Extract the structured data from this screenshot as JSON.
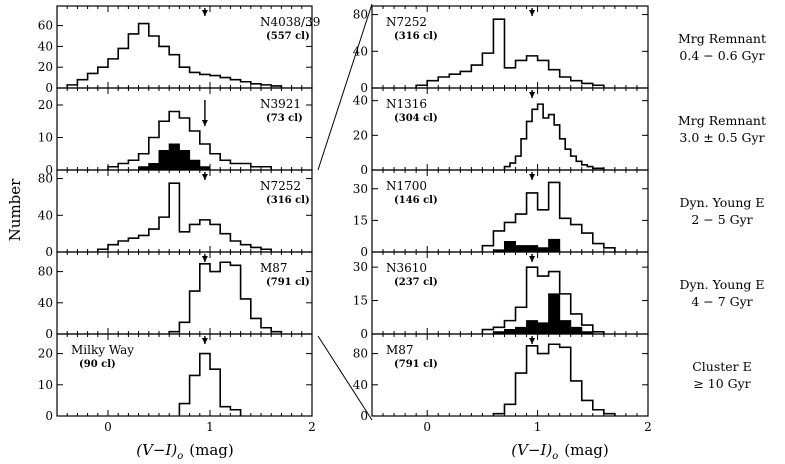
{
  "figure": {
    "ylabel": "Number",
    "xlabel_left": "(V−I)",
    "xlabel_right": "(V−I)",
    "xlabel_subscript": "o",
    "xlabel_unit": "(mag)"
  },
  "chart_data": [
    {
      "type": "histogram",
      "column": "left",
      "label": "N4038/39",
      "count": "(557 cl)",
      "xlim": [
        -0.5,
        2
      ],
      "ylim": [
        0,
        75
      ],
      "yticks": [
        0,
        20,
        40,
        60
      ],
      "arrow": 0.95,
      "bins": [
        -0.4,
        -0.3,
        -0.2,
        -0.1,
        0,
        0.1,
        0.2,
        0.3,
        0.4,
        0.5,
        0.6,
        0.7,
        0.8,
        0.9,
        1.0,
        1.1,
        1.2,
        1.3,
        1.4,
        1.5,
        1.6,
        1.7
      ],
      "series": [
        {
          "values": [
            3,
            8,
            14,
            20,
            28,
            38,
            52,
            62,
            50,
            40,
            32,
            20,
            15,
            13,
            12,
            10,
            8,
            6,
            4,
            3,
            2
          ]
        }
      ]
    },
    {
      "type": "histogram",
      "column": "left",
      "label": "N3921",
      "count": "(73 cl)",
      "xlim": [
        -0.5,
        2
      ],
      "ylim": [
        0,
        24
      ],
      "yticks": [
        0,
        10,
        20
      ],
      "arrow": 0.95,
      "bins": [
        0,
        0.1,
        0.2,
        0.3,
        0.4,
        0.5,
        0.6,
        0.7,
        0.8,
        0.9,
        1.0,
        1.1,
        1.2,
        1.3,
        1.4,
        1.5,
        1.6
      ],
      "series": [
        {
          "values": [
            1,
            2,
            3,
            5,
            10,
            15,
            18,
            16,
            12,
            8,
            5,
            3,
            2,
            2,
            1,
            1
          ]
        },
        {
          "values": [
            0,
            0,
            0,
            1,
            2,
            6,
            8,
            6,
            3,
            1,
            0,
            0,
            0,
            0,
            0,
            0
          ],
          "filled": true
        }
      ]
    },
    {
      "type": "histogram",
      "column": "left",
      "label": "N7252",
      "count": "(316 cl)",
      "xlim": [
        -0.5,
        2
      ],
      "ylim": [
        0,
        85
      ],
      "yticks": [
        0,
        40,
        80
      ],
      "arrow": 0.95,
      "bins": [
        -0.1,
        0,
        0.1,
        0.2,
        0.3,
        0.4,
        0.5,
        0.6,
        0.7,
        0.8,
        0.9,
        1.0,
        1.1,
        1.2,
        1.3,
        1.4,
        1.5,
        1.6
      ],
      "series": [
        {
          "values": [
            3,
            8,
            12,
            15,
            18,
            25,
            38,
            75,
            22,
            30,
            35,
            30,
            20,
            12,
            8,
            5,
            3
          ]
        }
      ]
    },
    {
      "type": "histogram",
      "column": "left",
      "label": "M87",
      "count": "(791 cl)",
      "xlim": [
        -0.5,
        2
      ],
      "ylim": [
        0,
        100
      ],
      "yticks": [
        0,
        40,
        80
      ],
      "arrow": 0.95,
      "bins": [
        0.6,
        0.7,
        0.8,
        0.9,
        1.0,
        1.1,
        1.2,
        1.3,
        1.4,
        1.5,
        1.6,
        1.7
      ],
      "series": [
        {
          "values": [
            3,
            15,
            55,
            90,
            80,
            92,
            88,
            45,
            20,
            8,
            3
          ]
        }
      ]
    },
    {
      "type": "histogram",
      "column": "left",
      "label": "Milky Way",
      "count": "(90 cl)",
      "xlim": [
        -0.5,
        2
      ],
      "ylim": [
        0,
        25
      ],
      "yticks": [
        0,
        10,
        20
      ],
      "arrow": 0.95,
      "bins": [
        0.7,
        0.8,
        0.9,
        1.0,
        1.1,
        1.2,
        1.3
      ],
      "series": [
        {
          "values": [
            4,
            13,
            20,
            15,
            3,
            2
          ]
        }
      ]
    },
    {
      "type": "histogram",
      "column": "right",
      "label": "N7252",
      "count": "(316 cl)",
      "xlim": [
        -0.5,
        2
      ],
      "ylim": [
        0,
        85
      ],
      "yticks": [
        0,
        40,
        80
      ],
      "arrow": 0.95,
      "bins": [
        -0.1,
        0,
        0.1,
        0.2,
        0.3,
        0.4,
        0.5,
        0.6,
        0.7,
        0.8,
        0.9,
        1.0,
        1.1,
        1.2,
        1.3,
        1.4,
        1.5,
        1.6
      ],
      "series": [
        {
          "values": [
            3,
            8,
            12,
            15,
            18,
            25,
            38,
            75,
            22,
            30,
            35,
            30,
            20,
            12,
            8,
            5,
            3
          ]
        }
      ]
    },
    {
      "type": "histogram",
      "column": "right",
      "label": "N1316",
      "count": "(304 cl)",
      "xlim": [
        -0.5,
        2
      ],
      "ylim": [
        0,
        45
      ],
      "yticks": [
        0,
        20,
        40
      ],
      "arrow": 0.95,
      "bins": [
        0.7,
        0.75,
        0.8,
        0.85,
        0.9,
        0.95,
        1.0,
        1.05,
        1.1,
        1.15,
        1.2,
        1.25,
        1.3,
        1.35,
        1.4,
        1.45,
        1.5,
        1.55,
        1.6
      ],
      "series": [
        {
          "values": [
            2,
            4,
            8,
            18,
            28,
            35,
            38,
            30,
            32,
            26,
            18,
            12,
            8,
            5,
            3,
            2,
            1,
            1
          ]
        }
      ]
    },
    {
      "type": "histogram",
      "column": "right",
      "label": "N1700",
      "count": "(146 cl)",
      "xlim": [
        -0.5,
        2
      ],
      "ylim": [
        0,
        37
      ],
      "yticks": [
        0,
        15,
        30
      ],
      "arrow": 0.95,
      "bins": [
        0.5,
        0.6,
        0.7,
        0.8,
        0.9,
        1.0,
        1.1,
        1.2,
        1.3,
        1.4,
        1.5,
        1.6,
        1.7
      ],
      "series": [
        {
          "values": [
            3,
            10,
            14,
            18,
            28,
            20,
            33,
            16,
            13,
            9,
            4,
            2
          ]
        },
        {
          "values": [
            0,
            1,
            5,
            3,
            3,
            2,
            6,
            0,
            0,
            0,
            0,
            0
          ],
          "filled": true
        }
      ]
    },
    {
      "type": "histogram",
      "column": "right",
      "label": "N3610",
      "count": "(237 cl)",
      "xlim": [
        -0.5,
        2
      ],
      "ylim": [
        0,
        35
      ],
      "yticks": [
        0,
        15,
        30
      ],
      "arrow": 0.95,
      "bins": [
        0.5,
        0.6,
        0.7,
        0.8,
        0.9,
        1.0,
        1.1,
        1.2,
        1.3,
        1.4,
        1.5,
        1.6
      ],
      "series": [
        {
          "values": [
            2,
            3,
            6,
            12,
            30,
            26,
            28,
            18,
            9,
            4,
            1
          ]
        },
        {
          "values": [
            0,
            1,
            2,
            3,
            6,
            5,
            18,
            6,
            3,
            1,
            0
          ],
          "filled": true
        }
      ]
    },
    {
      "type": "histogram",
      "column": "right",
      "label": "M87",
      "count": "(791 cl)",
      "xlim": [
        -0.5,
        2
      ],
      "ylim": [
        0,
        100
      ],
      "yticks": [
        0,
        40,
        80
      ],
      "arrow": 0.95,
      "bins": [
        0.6,
        0.7,
        0.8,
        0.9,
        1.0,
        1.1,
        1.2,
        1.3,
        1.4,
        1.5,
        1.6,
        1.7
      ],
      "series": [
        {
          "values": [
            3,
            15,
            55,
            90,
            80,
            92,
            88,
            45,
            20,
            8,
            3
          ]
        }
      ]
    }
  ],
  "side_labels": [
    {
      "line1": "Mrg Remnant",
      "line2": "0.4 − 0.6 Gyr"
    },
    {
      "line1": "Mrg Remnant",
      "line2": "3.0 ± 0.5 Gyr"
    },
    {
      "line1": "Dyn. Young E",
      "line2": "2 − 5 Gyr"
    },
    {
      "line1": "Dyn. Young E",
      "line2": "4 − 7 Gyr"
    },
    {
      "line1": "Cluster E",
      "line2": "≥ 10 Gyr"
    }
  ],
  "xticks": {
    "values": [
      0,
      1,
      2
    ],
    "labels": [
      "0",
      "1",
      "2"
    ]
  }
}
